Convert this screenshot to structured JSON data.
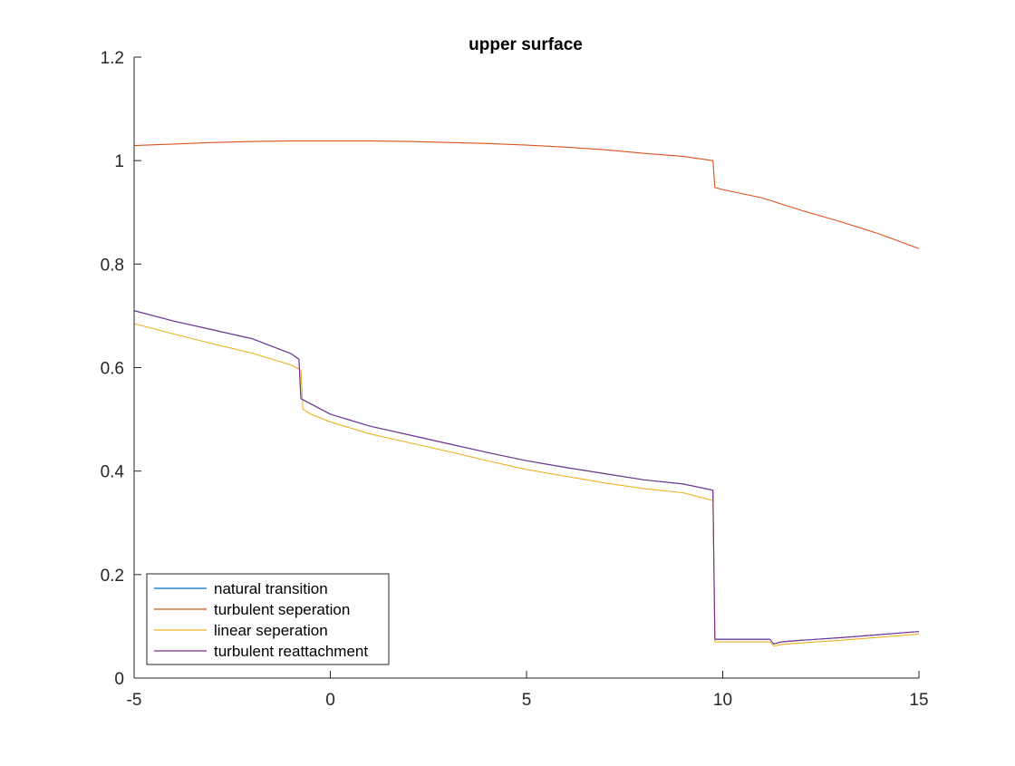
{
  "chart_data": {
    "type": "line",
    "title": "upper surface",
    "xlabel": "",
    "ylabel": "",
    "xlim": [
      -5,
      15
    ],
    "ylim": [
      0,
      1.2
    ],
    "xticks": [
      -5,
      0,
      5,
      10,
      15
    ],
    "xtick_labels": [
      "-5",
      "0",
      "5",
      "10",
      "15"
    ],
    "yticks": [
      0,
      0.2,
      0.4,
      0.6,
      0.8,
      1,
      1.2
    ],
    "ytick_labels": [
      "0",
      "0.2",
      "0.4",
      "0.6",
      "0.8",
      "1",
      "1.2"
    ],
    "grid": false,
    "legend_position": "bottom-left",
    "series": [
      {
        "name": "natural transition",
        "color": "#0072BD",
        "x": [
          -5,
          -4,
          -3,
          -2,
          -1,
          -0.8,
          -0.75,
          -0.5,
          0,
          1,
          2,
          3,
          4,
          5,
          6,
          7,
          8,
          9,
          9.75,
          9.8,
          10,
          11,
          11.2,
          11.3,
          11.5,
          12,
          13,
          14,
          15
        ],
        "y": [
          0.71,
          0.69,
          0.673,
          0.656,
          0.627,
          0.616,
          0.54,
          0.53,
          0.51,
          0.487,
          0.47,
          0.453,
          0.436,
          0.42,
          0.407,
          0.395,
          0.383,
          0.375,
          0.363,
          0.075,
          0.075,
          0.075,
          0.075,
          0.066,
          0.07,
          0.073,
          0.078,
          0.084,
          0.09
        ]
      },
      {
        "name": "turbulent seperation",
        "color": "#D95319",
        "x": [
          -5,
          -4,
          -3,
          -2,
          -1,
          0,
          1,
          2,
          3,
          4,
          5,
          6,
          7,
          8,
          9,
          9.75,
          9.8,
          10,
          11,
          12,
          13,
          14,
          15
        ],
        "y": [
          1.029,
          1.032,
          1.035,
          1.037,
          1.038,
          1.038,
          1.038,
          1.037,
          1.035,
          1.033,
          1.03,
          1.026,
          1.021,
          1.014,
          1.008,
          1.0,
          0.948,
          0.944,
          0.928,
          0.904,
          0.882,
          0.858,
          0.83
        ]
      },
      {
        "name": "linear seperation",
        "color": "#EDB120",
        "x": [
          -5,
          -4,
          -3,
          -2,
          -1,
          -0.75,
          -0.7,
          -0.5,
          0,
          1,
          2,
          3,
          4,
          5,
          6,
          7,
          8,
          9,
          9.75,
          9.8,
          10,
          11,
          11.2,
          11.3,
          11.5,
          12,
          13,
          14,
          15
        ],
        "y": [
          0.685,
          0.665,
          0.646,
          0.628,
          0.605,
          0.595,
          0.52,
          0.51,
          0.495,
          0.472,
          0.455,
          0.438,
          0.42,
          0.403,
          0.39,
          0.377,
          0.366,
          0.358,
          0.343,
          0.07,
          0.07,
          0.07,
          0.07,
          0.062,
          0.065,
          0.068,
          0.073,
          0.079,
          0.085
        ]
      },
      {
        "name": "turbulent reattachment",
        "color": "#7E2F8E",
        "x": [
          -5,
          -4,
          -3,
          -2,
          -1,
          -0.8,
          -0.75,
          -0.5,
          0,
          1,
          2,
          3,
          4,
          5,
          6,
          7,
          8,
          9,
          9.75,
          9.8,
          10,
          11,
          11.2,
          11.3,
          11.5,
          12,
          13,
          14,
          15
        ],
        "y": [
          0.71,
          0.69,
          0.673,
          0.656,
          0.627,
          0.616,
          0.54,
          0.53,
          0.51,
          0.487,
          0.47,
          0.453,
          0.436,
          0.42,
          0.407,
          0.395,
          0.383,
          0.375,
          0.363,
          0.075,
          0.075,
          0.075,
          0.075,
          0.066,
          0.07,
          0.073,
          0.078,
          0.084,
          0.09
        ]
      }
    ]
  }
}
